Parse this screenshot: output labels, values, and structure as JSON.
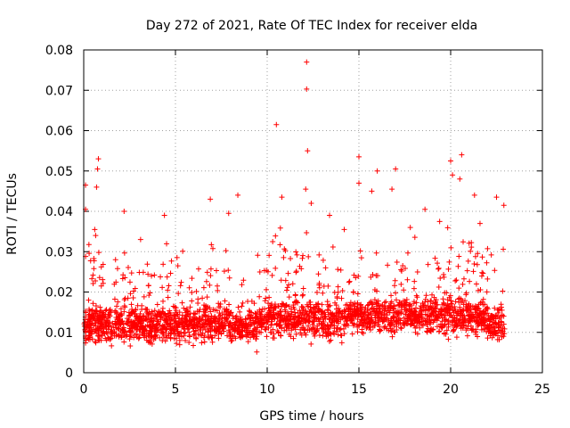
{
  "chart_data": {
    "type": "scatter",
    "title": "Day 272 of 2021, Rate Of TEC Index for receiver elda",
    "xlabel": "GPS time / hours",
    "ylabel": "ROTI / TECUs",
    "xlim": [
      0,
      25
    ],
    "ylim": [
      0,
      0.08
    ],
    "x_ticks": [
      "0",
      "5",
      "10",
      "15",
      "20",
      "25"
    ],
    "y_ticks": [
      "0",
      "0.01",
      "0.02",
      "0.03",
      "0.04",
      "0.05",
      "0.06",
      "0.07",
      "0.08"
    ],
    "x_tick_values": [
      0,
      5,
      10,
      15,
      20,
      25
    ],
    "y_tick_values": [
      0,
      0.01,
      0.02,
      0.03,
      0.04,
      0.05,
      0.06,
      0.07,
      0.08
    ],
    "grid": true,
    "marker": "+",
    "color": "#ff0000",
    "time_range_hours": [
      0,
      22.95
    ],
    "band": {
      "baseline_roti": 0.012,
      "typical_spread": 0.004,
      "typical_max": 0.03
    },
    "notable_points": [
      {
        "x": 12.15,
        "y": 0.077
      },
      {
        "x": 12.15,
        "y": 0.0703
      },
      {
        "x": 10.5,
        "y": 0.0615
      },
      {
        "x": 12.2,
        "y": 0.055
      },
      {
        "x": 15.0,
        "y": 0.0535
      },
      {
        "x": 20.6,
        "y": 0.054
      },
      {
        "x": 0.8,
        "y": 0.053
      },
      {
        "x": 20.0,
        "y": 0.0525
      },
      {
        "x": 0.75,
        "y": 0.0505
      },
      {
        "x": 16.0,
        "y": 0.05
      },
      {
        "x": 17.0,
        "y": 0.0505
      },
      {
        "x": 20.1,
        "y": 0.049
      },
      {
        "x": 15.0,
        "y": 0.047
      },
      {
        "x": 20.5,
        "y": 0.048
      },
      {
        "x": 0.1,
        "y": 0.0465
      },
      {
        "x": 12.1,
        "y": 0.0455
      },
      {
        "x": 15.7,
        "y": 0.045
      },
      {
        "x": 0.7,
        "y": 0.046
      },
      {
        "x": 8.4,
        "y": 0.044
      },
      {
        "x": 21.3,
        "y": 0.044
      },
      {
        "x": 10.8,
        "y": 0.0435
      },
      {
        "x": 16.8,
        "y": 0.0455
      },
      {
        "x": 22.5,
        "y": 0.0435
      },
      {
        "x": 6.9,
        "y": 0.043
      },
      {
        "x": 0.1,
        "y": 0.0405
      },
      {
        "x": 2.2,
        "y": 0.04
      },
      {
        "x": 22.9,
        "y": 0.0415
      },
      {
        "x": 4.4,
        "y": 0.039
      },
      {
        "x": 12.4,
        "y": 0.042
      },
      {
        "x": 18.6,
        "y": 0.0405
      },
      {
        "x": 13.4,
        "y": 0.039
      },
      {
        "x": 7.9,
        "y": 0.0395
      },
      {
        "x": 0.6,
        "y": 0.0355
      },
      {
        "x": 0.65,
        "y": 0.034
      },
      {
        "x": 10.3,
        "y": 0.0325
      },
      {
        "x": 3.1,
        "y": 0.033
      },
      {
        "x": 14.2,
        "y": 0.0355
      },
      {
        "x": 17.8,
        "y": 0.036
      },
      {
        "x": 19.4,
        "y": 0.0375
      },
      {
        "x": 21.6,
        "y": 0.037
      }
    ]
  }
}
